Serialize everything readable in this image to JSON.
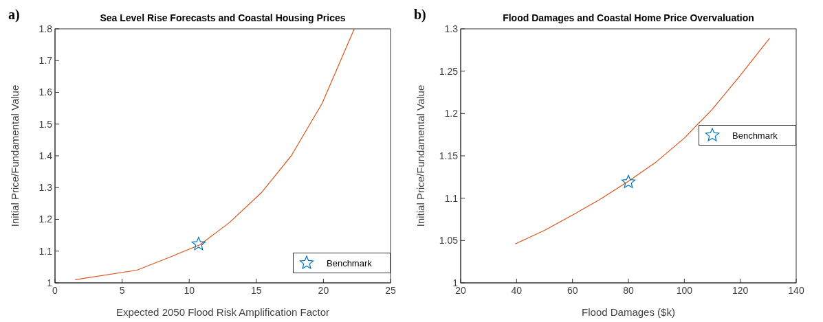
{
  "chart_data": [
    {
      "type": "line",
      "title": "Sea Level Rise Forecasts and Coastal Housing Prices",
      "xlabel": "Expected 2050 Flood Risk Amplification Factor",
      "ylabel": "Initial Price/Fundamental Value",
      "annotations": [
        "a)"
      ],
      "xlim": [
        0,
        25
      ],
      "xticks": [
        0,
        5,
        10,
        15,
        20,
        25
      ],
      "ylim": [
        1,
        1.8
      ],
      "yticks": [
        1,
        1.1,
        1.2,
        1.3,
        1.4,
        1.5,
        1.6,
        1.7,
        1.8
      ],
      "grid": false,
      "legend": "bottom right",
      "series": [
        {
          "color": "#d95319",
          "marker": "none",
          "x": [
            1.5,
            6.1,
            8.5,
            10.8,
            13,
            15.4,
            17.6,
            19.9,
            22.3
          ],
          "values": [
            1.01,
            1.04,
            1.08,
            1.12,
            1.19,
            1.285,
            1.4,
            1.565,
            1.8
          ]
        },
        {
          "type": "scatter",
          "name": "Benchmark",
          "color": "#0072bd",
          "marker": "star",
          "x": [
            10.7
          ],
          "values": [
            1.122
          ]
        }
      ]
    },
    {
      "type": "line",
      "title": "Flood Damages and Coastal Home Price Overvaluation",
      "xlabel": "Flood Damages ($k)",
      "ylabel": "Initial Price/Fundamental Value",
      "annotations": [
        "b)"
      ],
      "xlim": [
        20,
        140
      ],
      "xticks": [
        20,
        40,
        60,
        80,
        100,
        120,
        140
      ],
      "ylim": [
        1,
        1.3
      ],
      "yticks": [
        1,
        1.05,
        1.1,
        1.15,
        1.2,
        1.25,
        1.3
      ],
      "grid": false,
      "legend": "right",
      "series": [
        {
          "color": "#d95319",
          "marker": "none",
          "x": [
            39.5,
            50,
            60,
            70,
            80,
            90,
            100,
            110,
            120,
            130.5
          ],
          "values": [
            1.046,
            1.062,
            1.08,
            1.099,
            1.12,
            1.143,
            1.171,
            1.205,
            1.245,
            1.289
          ]
        },
        {
          "type": "scatter",
          "name": "Benchmark",
          "color": "#0072bd",
          "marker": "star",
          "x": [
            80
          ],
          "values": [
            1.119
          ]
        }
      ]
    }
  ]
}
